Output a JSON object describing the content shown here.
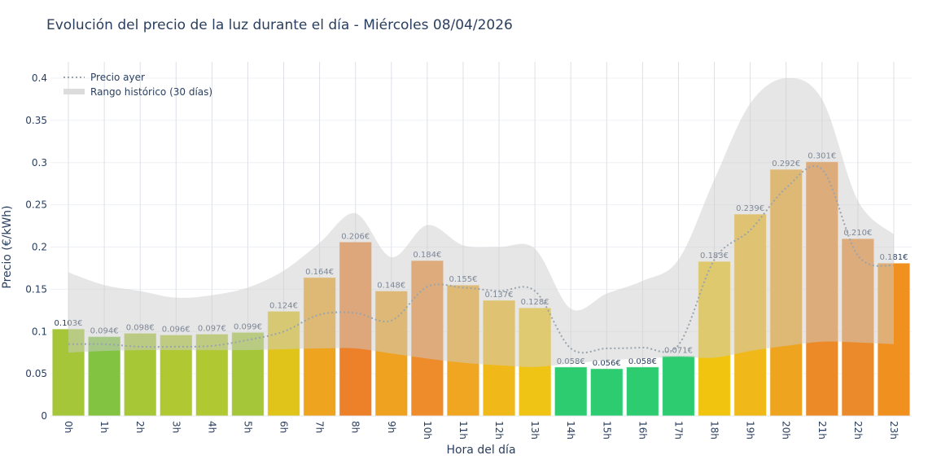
{
  "chart_data": {
    "type": "bar",
    "title": "Evolución del precio de la luz durante el día - Miércoles 08/04/2026",
    "xlabel": "Hora del día",
    "ylabel": "Precio (€/kWh)",
    "ylim": [
      0,
      0.42
    ],
    "yticks": [
      0,
      0.05,
      0.1,
      0.15,
      0.2,
      0.25,
      0.3,
      0.35,
      0.4
    ],
    "grid": true,
    "legend_position": "top-left",
    "categories": [
      "0h",
      "1h",
      "2h",
      "3h",
      "4h",
      "5h",
      "6h",
      "7h",
      "8h",
      "9h",
      "10h",
      "11h",
      "12h",
      "13h",
      "14h",
      "15h",
      "16h",
      "17h",
      "18h",
      "19h",
      "20h",
      "21h",
      "22h",
      "23h"
    ],
    "values": [
      0.103,
      0.094,
      0.098,
      0.096,
      0.097,
      0.099,
      0.124,
      0.164,
      0.206,
      0.148,
      0.184,
      0.155,
      0.137,
      0.128,
      0.058,
      0.056,
      0.058,
      0.071,
      0.183,
      0.239,
      0.292,
      0.301,
      0.21,
      0.181
    ],
    "labels": [
      "0.103€",
      "0.094€",
      "0.098€",
      "0.096€",
      "0.097€",
      "0.099€",
      "0.124€",
      "0.164€",
      "0.206€",
      "0.148€",
      "0.184€",
      "0.155€",
      "0.137€",
      "0.128€",
      "0.058€",
      "0.056€",
      "0.058€",
      "0.071€",
      "0.183€",
      "0.239€",
      "0.292€",
      "0.301€",
      "0.210€",
      "0.181€"
    ],
    "bar_colors": [
      "#a5c638",
      "#82c341",
      "#a8c737",
      "#b0c933",
      "#b0c933",
      "#a5c638",
      "#e0c41a",
      "#eea41e",
      "#ed8129",
      "#efa21f",
      "#ee8b2a",
      "#f0a620",
      "#f0b818",
      "#f0c414",
      "#2ecc71",
      "#2ecc71",
      "#2ecc71",
      "#2ecc71",
      "#f1c40f",
      "#f0b818",
      "#eea41e",
      "#ec8a28",
      "#eb8a2a",
      "#f0901f"
    ],
    "series": [
      {
        "name": "Precio ayer",
        "type": "line",
        "style": "dotted",
        "color": "#9aa4ad",
        "values": [
          0.085,
          0.085,
          0.082,
          0.082,
          0.083,
          0.09,
          0.1,
          0.12,
          0.122,
          0.113,
          0.153,
          0.152,
          0.148,
          0.148,
          0.08,
          0.08,
          0.081,
          0.084,
          0.185,
          0.22,
          0.27,
          0.292,
          0.19,
          0.178
        ]
      },
      {
        "name": "Rango histórico (30 días)",
        "type": "band",
        "color": "#cccccc",
        "upper": [
          0.17,
          0.155,
          0.148,
          0.14,
          0.143,
          0.152,
          0.172,
          0.205,
          0.24,
          0.188,
          0.226,
          0.202,
          0.2,
          0.198,
          0.127,
          0.145,
          0.16,
          0.185,
          0.28,
          0.37,
          0.4,
          0.375,
          0.255,
          0.215
        ],
        "lower": [
          0.075,
          0.077,
          0.078,
          0.078,
          0.078,
          0.078,
          0.079,
          0.08,
          0.08,
          0.074,
          0.068,
          0.063,
          0.06,
          0.058,
          0.062,
          0.066,
          0.068,
          0.07,
          0.069,
          0.077,
          0.083,
          0.088,
          0.087,
          0.085
        ]
      }
    ]
  }
}
